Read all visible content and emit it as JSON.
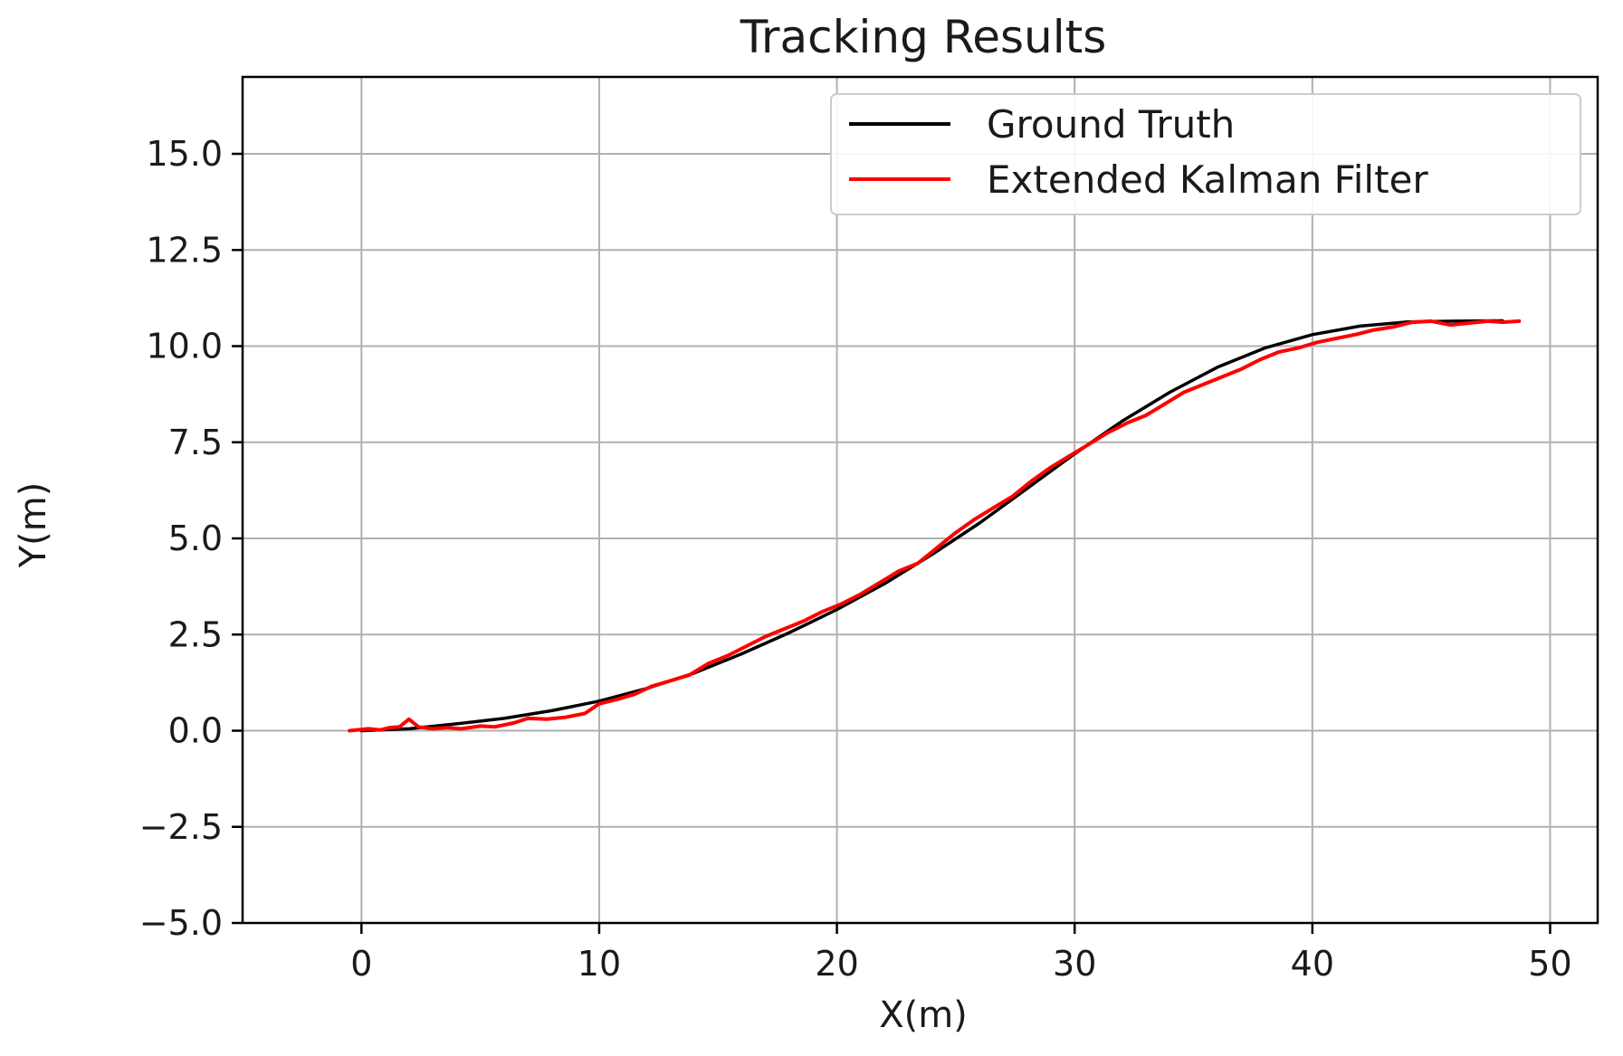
{
  "chart_data": {
    "type": "line",
    "title": "Tracking Results",
    "xlabel": "X(m)",
    "ylabel": "Y(m)",
    "xlim": [
      -5,
      52
    ],
    "ylim": [
      -5,
      17
    ],
    "xticks": [
      0,
      10,
      20,
      30,
      40,
      50
    ],
    "yticks": [
      -5.0,
      -2.5,
      0.0,
      2.5,
      5.0,
      7.5,
      10.0,
      12.5,
      15.0
    ],
    "xtick_labels": [
      "0",
      "10",
      "20",
      "30",
      "40",
      "50"
    ],
    "ytick_labels": [
      "−5.0",
      "−2.5",
      "0.0",
      "2.5",
      "5.0",
      "7.5",
      "10.0",
      "12.5",
      "15.0"
    ],
    "grid": true,
    "legend_position": "top-right",
    "series": [
      {
        "name": "Ground Truth",
        "color": "#000000",
        "x": [
          0,
          2,
          4,
          6,
          8,
          10,
          12,
          14,
          16,
          18,
          20,
          22,
          24,
          26,
          28,
          30,
          32,
          34,
          36,
          38,
          40,
          42,
          44,
          46,
          48
        ],
        "y": [
          0.0,
          0.05,
          0.18,
          0.32,
          0.52,
          0.77,
          1.1,
          1.5,
          2.0,
          2.55,
          3.15,
          3.82,
          4.58,
          5.4,
          6.3,
          7.2,
          8.05,
          8.8,
          9.45,
          9.95,
          10.3,
          10.52,
          10.63,
          10.65,
          10.66
        ]
      },
      {
        "name": "Extended Kalman Filter",
        "color": "#ff0000",
        "x": [
          -0.5,
          0.3,
          0.8,
          1.2,
          1.6,
          2.0,
          2.4,
          3.0,
          3.6,
          4.2,
          5.0,
          5.6,
          6.4,
          7.0,
          7.8,
          8.6,
          9.4,
          10.0,
          10.8,
          11.5,
          12.2,
          13.0,
          13.8,
          14.6,
          15.4,
          16.2,
          17.0,
          17.8,
          18.6,
          19.4,
          20.2,
          21.0,
          21.8,
          22.6,
          23.4,
          24.2,
          25.0,
          25.8,
          26.6,
          27.4,
          28.2,
          29.0,
          29.8,
          30.6,
          31.4,
          32.2,
          33.0,
          33.8,
          34.6,
          35.4,
          36.2,
          37.0,
          37.8,
          38.6,
          39.4,
          40.2,
          41.0,
          41.8,
          42.6,
          43.4,
          44.2,
          45.0,
          45.8,
          46.6,
          47.4,
          48.0,
          48.7
        ],
        "y": [
          0.0,
          0.05,
          0.02,
          0.08,
          0.1,
          0.3,
          0.1,
          0.05,
          0.08,
          0.05,
          0.12,
          0.1,
          0.2,
          0.32,
          0.3,
          0.35,
          0.45,
          0.7,
          0.82,
          0.95,
          1.15,
          1.3,
          1.45,
          1.75,
          1.95,
          2.2,
          2.45,
          2.65,
          2.85,
          3.1,
          3.3,
          3.55,
          3.85,
          4.15,
          4.35,
          4.75,
          5.15,
          5.5,
          5.8,
          6.1,
          6.5,
          6.85,
          7.15,
          7.45,
          7.75,
          8.0,
          8.2,
          8.5,
          8.8,
          9.0,
          9.2,
          9.4,
          9.65,
          9.85,
          9.95,
          10.1,
          10.2,
          10.3,
          10.42,
          10.5,
          10.62,
          10.65,
          10.55,
          10.6,
          10.65,
          10.62,
          10.65
        ]
      }
    ]
  }
}
